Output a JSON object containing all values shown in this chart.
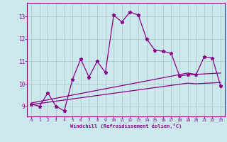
{
  "xlabel": "Windchill (Refroidissement éolien,°C)",
  "bg_color": "#cce8ec",
  "grid_color": "#aacccc",
  "line_color": "#880088",
  "x_ticks": [
    0,
    1,
    2,
    3,
    4,
    5,
    6,
    7,
    8,
    9,
    10,
    11,
    12,
    13,
    14,
    15,
    16,
    17,
    18,
    19,
    20,
    21,
    22,
    23
  ],
  "y_ticks": [
    9,
    10,
    11,
    12,
    13
  ],
  "ylim": [
    8.55,
    13.6
  ],
  "xlim": [
    -0.5,
    23.5
  ],
  "main_y": [
    9.1,
    9.0,
    9.6,
    9.0,
    8.8,
    10.2,
    11.1,
    10.3,
    11.0,
    10.5,
    13.05,
    12.75,
    13.2,
    13.05,
    12.0,
    11.5,
    11.45,
    11.35,
    10.35,
    10.4,
    10.4,
    11.2,
    11.15,
    9.9
  ],
  "smooth1_y": [
    9.15,
    9.22,
    9.29,
    9.36,
    9.43,
    9.5,
    9.57,
    9.64,
    9.71,
    9.78,
    9.85,
    9.92,
    9.99,
    10.06,
    10.13,
    10.2,
    10.27,
    10.34,
    10.41,
    10.48,
    10.42,
    10.44,
    10.46,
    10.48
  ],
  "smooth2_y": [
    9.08,
    9.13,
    9.18,
    9.23,
    9.28,
    9.33,
    9.38,
    9.43,
    9.48,
    9.53,
    9.58,
    9.63,
    9.68,
    9.73,
    9.78,
    9.83,
    9.88,
    9.93,
    9.98,
    10.03,
    10.0,
    10.02,
    10.04,
    10.06
  ]
}
